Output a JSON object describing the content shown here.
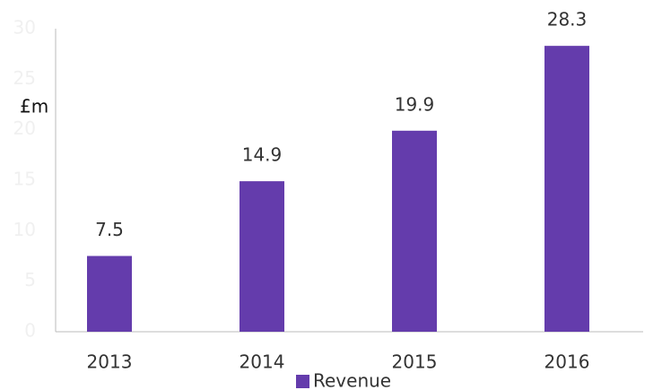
{
  "chart_data": {
    "type": "bar",
    "ylabel": "£m",
    "categories": [
      "2013",
      "2014",
      "2015",
      "2016"
    ],
    "series": [
      {
        "name": "Revenue",
        "color": "#643cac",
        "values": [
          7.5,
          14.9,
          19.9,
          28.3
        ]
      }
    ],
    "ylim": [
      0,
      30
    ],
    "yticks": [
      0,
      5,
      10,
      15,
      20,
      25,
      30
    ],
    "grid": false,
    "legend": "bottom"
  }
}
